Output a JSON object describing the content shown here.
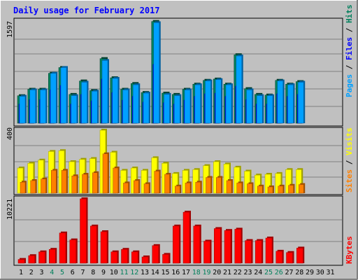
{
  "title": "Daily usage for February 2017",
  "colors": {
    "background": "#c0c0c0",
    "title": "#0000ff",
    "pages": "#00a0ff",
    "pages_side": "#0060a0",
    "files": "#0000ff",
    "files_side": "#0000a0",
    "hits": "#00805c",
    "hits_side": "#004030",
    "visits": "#ffff00",
    "visits_side": "#a0a000",
    "sites": "#ff8000",
    "sites_side": "#a05000",
    "kbytes": "#ff0000",
    "kbytes_side": "#a00000",
    "weekend_label": "#00805c",
    "weekday_label": "#000000"
  },
  "chart_data": [
    {
      "type": "bar",
      "panel": "hits_files_pages",
      "ymax_label": "1597",
      "ylim": [
        0,
        1597
      ],
      "axis_title_parts": [
        {
          "text": "Pages",
          "color": "#00a0ff"
        },
        {
          "text": " / ",
          "color": "#000000"
        },
        {
          "text": "Files",
          "color": "#0000ff"
        },
        {
          "text": " / ",
          "color": "#000000"
        },
        {
          "text": "Hits",
          "color": "#00805c"
        }
      ],
      "categories": [
        "1",
        "2",
        "3",
        "4",
        "5",
        "6",
        "7",
        "8",
        "9",
        "10",
        "11",
        "12",
        "13",
        "14",
        "15",
        "16",
        "17",
        "18",
        "19",
        "20",
        "21",
        "22",
        "23",
        "24",
        "25",
        "26",
        "27",
        "28",
        "29",
        "30",
        "31"
      ],
      "series": [
        {
          "name": "Hits",
          "values": [
            430,
            530,
            530,
            780,
            870,
            450,
            660,
            510,
            1010,
            710,
            530,
            620,
            480,
            1590,
            470,
            450,
            530,
            610,
            670,
            690,
            610,
            1070,
            540,
            450,
            440,
            670,
            610,
            650,
            null,
            null,
            null
          ]
        },
        {
          "name": "Files",
          "values": [
            300,
            370,
            370,
            520,
            590,
            300,
            450,
            350,
            690,
            480,
            360,
            420,
            330,
            920,
            320,
            300,
            360,
            420,
            460,
            470,
            420,
            580,
            370,
            300,
            300,
            460,
            420,
            450,
            null,
            null,
            null
          ]
        },
        {
          "name": "Pages",
          "values": [
            420,
            520,
            520,
            780,
            870,
            430,
            640,
            500,
            980,
            700,
            520,
            600,
            470,
            1570,
            450,
            430,
            520,
            600,
            660,
            680,
            600,
            1050,
            520,
            430,
            430,
            660,
            600,
            640,
            null,
            null,
            null
          ]
        }
      ]
    },
    {
      "type": "bar",
      "panel": "visits_sites",
      "ymax_label": "400",
      "ylim": [
        0,
        400
      ],
      "axis_title_parts": [
        {
          "text": "Sites",
          "color": "#ff8000"
        },
        {
          "text": " / ",
          "color": "#000000"
        },
        {
          "text": "Visits",
          "color": "#ffff00"
        }
      ],
      "categories": [
        "1",
        "2",
        "3",
        "4",
        "5",
        "6",
        "7",
        "8",
        "9",
        "10",
        "11",
        "12",
        "13",
        "14",
        "15",
        "16",
        "17",
        "18",
        "19",
        "20",
        "21",
        "22",
        "23",
        "24",
        "25",
        "26",
        "27",
        "28",
        "29",
        "30",
        "31"
      ],
      "series": [
        {
          "name": "Visits",
          "values": [
            160,
            190,
            210,
            265,
            270,
            200,
            215,
            220,
            400,
            260,
            145,
            160,
            145,
            225,
            190,
            125,
            145,
            150,
            175,
            200,
            185,
            165,
            140,
            115,
            120,
            125,
            150,
            150,
            null,
            null,
            null
          ]
        },
        {
          "name": "Sites",
          "values": [
            70,
            80,
            90,
            145,
            145,
            110,
            120,
            130,
            250,
            160,
            65,
            80,
            60,
            140,
            120,
            45,
            65,
            70,
            100,
            100,
            80,
            65,
            60,
            45,
            40,
            45,
            50,
            55,
            null,
            null,
            null
          ]
        }
      ]
    },
    {
      "type": "bar",
      "panel": "kbytes",
      "ymax_label": "10221",
      "ylim": [
        0,
        10221
      ],
      "axis_title_parts": [
        {
          "text": "KBytes",
          "color": "#ff0000"
        }
      ],
      "categories": [
        "1",
        "2",
        "3",
        "4",
        "5",
        "6",
        "7",
        "8",
        "9",
        "10",
        "11",
        "12",
        "13",
        "14",
        "15",
        "16",
        "17",
        "18",
        "19",
        "20",
        "21",
        "22",
        "23",
        "24",
        "25",
        "26",
        "27",
        "28",
        "29",
        "30",
        "31"
      ],
      "series": [
        {
          "name": "KBytes",
          "values": [
            600,
            1200,
            1800,
            2200,
            4800,
            3700,
            10221,
            5900,
            5000,
            1800,
            2200,
            1800,
            1000,
            2800,
            1400,
            5900,
            8100,
            5900,
            3500,
            5500,
            5200,
            5400,
            3600,
            3600,
            4000,
            1900,
            1700,
            2400,
            null,
            null,
            null
          ]
        }
      ]
    }
  ],
  "x_labels": [
    "1",
    "2",
    "3",
    "4",
    "5",
    "6",
    "7",
    "8",
    "9",
    "10",
    "11",
    "12",
    "13",
    "14",
    "15",
    "16",
    "17",
    "18",
    "19",
    "20",
    "21",
    "22",
    "23",
    "24",
    "25",
    "26",
    "27",
    "28",
    "29",
    "30",
    "31"
  ],
  "weekend_days": [
    4,
    5,
    11,
    12,
    18,
    19,
    25,
    26
  ]
}
